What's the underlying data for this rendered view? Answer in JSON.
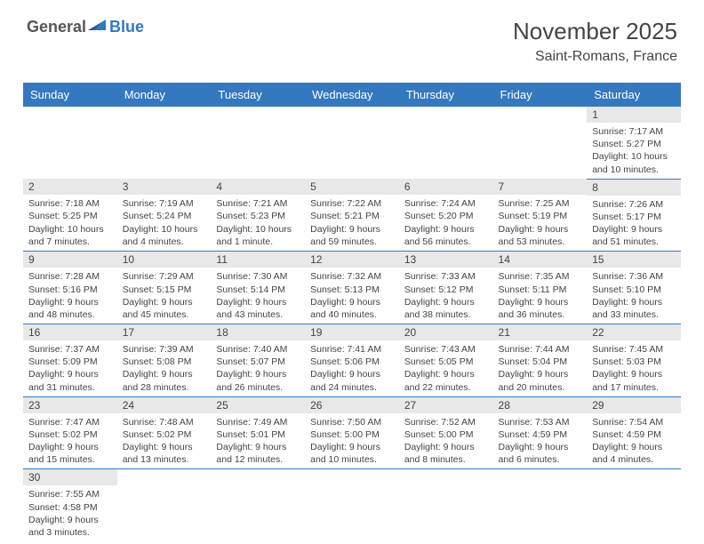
{
  "logo": {
    "text1": "General",
    "text2": "Blue"
  },
  "title": "November 2025",
  "location": "Saint-Romans, France",
  "colors": {
    "headerBg": "#3478c0",
    "headerText": "#ffffff",
    "dayNumBg": "#e8e8e8",
    "text": "#444444",
    "borderColor": "#3478c0"
  },
  "daysOfWeek": [
    "Sunday",
    "Monday",
    "Tuesday",
    "Wednesday",
    "Thursday",
    "Friday",
    "Saturday"
  ],
  "weeks": [
    [
      null,
      null,
      null,
      null,
      null,
      null,
      {
        "n": "1",
        "sr": "Sunrise: 7:17 AM",
        "ss": "Sunset: 5:27 PM",
        "d1": "Daylight: 10 hours",
        "d2": "and 10 minutes."
      }
    ],
    [
      {
        "n": "2",
        "sr": "Sunrise: 7:18 AM",
        "ss": "Sunset: 5:25 PM",
        "d1": "Daylight: 10 hours",
        "d2": "and 7 minutes."
      },
      {
        "n": "3",
        "sr": "Sunrise: 7:19 AM",
        "ss": "Sunset: 5:24 PM",
        "d1": "Daylight: 10 hours",
        "d2": "and 4 minutes."
      },
      {
        "n": "4",
        "sr": "Sunrise: 7:21 AM",
        "ss": "Sunset: 5:23 PM",
        "d1": "Daylight: 10 hours",
        "d2": "and 1 minute."
      },
      {
        "n": "5",
        "sr": "Sunrise: 7:22 AM",
        "ss": "Sunset: 5:21 PM",
        "d1": "Daylight: 9 hours",
        "d2": "and 59 minutes."
      },
      {
        "n": "6",
        "sr": "Sunrise: 7:24 AM",
        "ss": "Sunset: 5:20 PM",
        "d1": "Daylight: 9 hours",
        "d2": "and 56 minutes."
      },
      {
        "n": "7",
        "sr": "Sunrise: 7:25 AM",
        "ss": "Sunset: 5:19 PM",
        "d1": "Daylight: 9 hours",
        "d2": "and 53 minutes."
      },
      {
        "n": "8",
        "sr": "Sunrise: 7:26 AM",
        "ss": "Sunset: 5:17 PM",
        "d1": "Daylight: 9 hours",
        "d2": "and 51 minutes."
      }
    ],
    [
      {
        "n": "9",
        "sr": "Sunrise: 7:28 AM",
        "ss": "Sunset: 5:16 PM",
        "d1": "Daylight: 9 hours",
        "d2": "and 48 minutes."
      },
      {
        "n": "10",
        "sr": "Sunrise: 7:29 AM",
        "ss": "Sunset: 5:15 PM",
        "d1": "Daylight: 9 hours",
        "d2": "and 45 minutes."
      },
      {
        "n": "11",
        "sr": "Sunrise: 7:30 AM",
        "ss": "Sunset: 5:14 PM",
        "d1": "Daylight: 9 hours",
        "d2": "and 43 minutes."
      },
      {
        "n": "12",
        "sr": "Sunrise: 7:32 AM",
        "ss": "Sunset: 5:13 PM",
        "d1": "Daylight: 9 hours",
        "d2": "and 40 minutes."
      },
      {
        "n": "13",
        "sr": "Sunrise: 7:33 AM",
        "ss": "Sunset: 5:12 PM",
        "d1": "Daylight: 9 hours",
        "d2": "and 38 minutes."
      },
      {
        "n": "14",
        "sr": "Sunrise: 7:35 AM",
        "ss": "Sunset: 5:11 PM",
        "d1": "Daylight: 9 hours",
        "d2": "and 36 minutes."
      },
      {
        "n": "15",
        "sr": "Sunrise: 7:36 AM",
        "ss": "Sunset: 5:10 PM",
        "d1": "Daylight: 9 hours",
        "d2": "and 33 minutes."
      }
    ],
    [
      {
        "n": "16",
        "sr": "Sunrise: 7:37 AM",
        "ss": "Sunset: 5:09 PM",
        "d1": "Daylight: 9 hours",
        "d2": "and 31 minutes."
      },
      {
        "n": "17",
        "sr": "Sunrise: 7:39 AM",
        "ss": "Sunset: 5:08 PM",
        "d1": "Daylight: 9 hours",
        "d2": "and 28 minutes."
      },
      {
        "n": "18",
        "sr": "Sunrise: 7:40 AM",
        "ss": "Sunset: 5:07 PM",
        "d1": "Daylight: 9 hours",
        "d2": "and 26 minutes."
      },
      {
        "n": "19",
        "sr": "Sunrise: 7:41 AM",
        "ss": "Sunset: 5:06 PM",
        "d1": "Daylight: 9 hours",
        "d2": "and 24 minutes."
      },
      {
        "n": "20",
        "sr": "Sunrise: 7:43 AM",
        "ss": "Sunset: 5:05 PM",
        "d1": "Daylight: 9 hours",
        "d2": "and 22 minutes."
      },
      {
        "n": "21",
        "sr": "Sunrise: 7:44 AM",
        "ss": "Sunset: 5:04 PM",
        "d1": "Daylight: 9 hours",
        "d2": "and 20 minutes."
      },
      {
        "n": "22",
        "sr": "Sunrise: 7:45 AM",
        "ss": "Sunset: 5:03 PM",
        "d1": "Daylight: 9 hours",
        "d2": "and 17 minutes."
      }
    ],
    [
      {
        "n": "23",
        "sr": "Sunrise: 7:47 AM",
        "ss": "Sunset: 5:02 PM",
        "d1": "Daylight: 9 hours",
        "d2": "and 15 minutes."
      },
      {
        "n": "24",
        "sr": "Sunrise: 7:48 AM",
        "ss": "Sunset: 5:02 PM",
        "d1": "Daylight: 9 hours",
        "d2": "and 13 minutes."
      },
      {
        "n": "25",
        "sr": "Sunrise: 7:49 AM",
        "ss": "Sunset: 5:01 PM",
        "d1": "Daylight: 9 hours",
        "d2": "and 12 minutes."
      },
      {
        "n": "26",
        "sr": "Sunrise: 7:50 AM",
        "ss": "Sunset: 5:00 PM",
        "d1": "Daylight: 9 hours",
        "d2": "and 10 minutes."
      },
      {
        "n": "27",
        "sr": "Sunrise: 7:52 AM",
        "ss": "Sunset: 5:00 PM",
        "d1": "Daylight: 9 hours",
        "d2": "and 8 minutes."
      },
      {
        "n": "28",
        "sr": "Sunrise: 7:53 AM",
        "ss": "Sunset: 4:59 PM",
        "d1": "Daylight: 9 hours",
        "d2": "and 6 minutes."
      },
      {
        "n": "29",
        "sr": "Sunrise: 7:54 AM",
        "ss": "Sunset: 4:59 PM",
        "d1": "Daylight: 9 hours",
        "d2": "and 4 minutes."
      }
    ],
    [
      {
        "n": "30",
        "sr": "Sunrise: 7:55 AM",
        "ss": "Sunset: 4:58 PM",
        "d1": "Daylight: 9 hours",
        "d2": "and 3 minutes."
      },
      null,
      null,
      null,
      null,
      null,
      null
    ]
  ]
}
